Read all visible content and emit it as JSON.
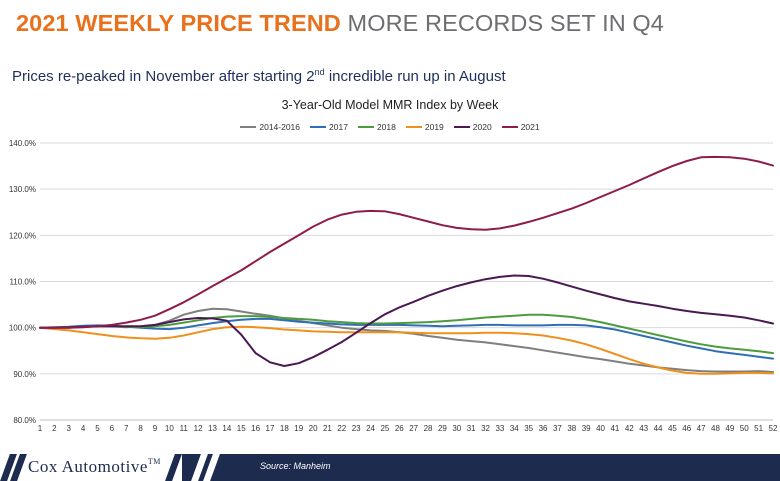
{
  "header": {
    "title_highlight": "2021 WEEKLY PRICE TREND",
    "title_rest": "MORE RECORDS SET IN Q4",
    "subtitle_before": "Prices re-peaked in November after starting 2",
    "subtitle_sup": "nd",
    "subtitle_after": " incredible run up in August"
  },
  "footer": {
    "logo_text": "Cox Automotive",
    "logo_tm": "TM",
    "source": "Source: Manheim"
  },
  "chart_data": {
    "type": "line",
    "title": "3-Year-Old Model MMR Index by Week",
    "xlabel": "",
    "ylabel": "",
    "x": [
      1,
      2,
      3,
      4,
      5,
      6,
      7,
      8,
      9,
      10,
      11,
      12,
      13,
      14,
      15,
      16,
      17,
      18,
      19,
      20,
      21,
      22,
      23,
      24,
      25,
      26,
      27,
      28,
      29,
      30,
      31,
      32,
      33,
      34,
      35,
      36,
      37,
      38,
      39,
      40,
      41,
      42,
      43,
      44,
      45,
      46,
      47,
      48,
      49,
      50,
      51,
      52
    ],
    "ylim": [
      80,
      140
    ],
    "yticks": [
      80,
      90,
      100,
      110,
      120,
      130,
      140
    ],
    "ytick_labels": [
      "80.0%",
      "90.0%",
      "100.0%",
      "110.0%",
      "120.0%",
      "130.0%",
      "140.0%"
    ],
    "legend_position": "top-center",
    "series": [
      {
        "name": "2014-2016",
        "color": "#7f7f7f",
        "values": [
          100.0,
          99.9,
          100.0,
          100.2,
          100.4,
          100.3,
          100.1,
          100.2,
          100.6,
          101.5,
          102.8,
          103.6,
          104.1,
          104.0,
          103.5,
          103.0,
          102.6,
          102.0,
          101.5,
          101.0,
          100.5,
          100.0,
          99.7,
          99.4,
          99.3,
          99.0,
          98.7,
          98.2,
          97.8,
          97.4,
          97.1,
          96.8,
          96.4,
          96.0,
          95.6,
          95.1,
          94.6,
          94.1,
          93.6,
          93.2,
          92.7,
          92.2,
          91.8,
          91.4,
          91.1,
          90.8,
          90.6,
          90.5,
          90.5,
          90.5,
          90.6,
          90.4
        ]
      },
      {
        "name": "2017",
        "color": "#2f6fb5",
        "values": [
          100.0,
          100.1,
          100.2,
          100.4,
          100.5,
          100.4,
          100.2,
          100.0,
          99.8,
          99.7,
          100.0,
          100.5,
          101.0,
          101.4,
          101.7,
          101.9,
          101.9,
          101.6,
          101.3,
          101.1,
          100.9,
          100.7,
          100.6,
          100.6,
          100.6,
          100.6,
          100.5,
          100.4,
          100.3,
          100.4,
          100.5,
          100.6,
          100.6,
          100.5,
          100.5,
          100.5,
          100.6,
          100.6,
          100.5,
          100.1,
          99.6,
          98.9,
          98.2,
          97.5,
          96.8,
          96.1,
          95.5,
          94.9,
          94.5,
          94.1,
          93.7,
          93.3
        ]
      },
      {
        "name": "2018",
        "color": "#4e9a3e",
        "values": [
          100.0,
          100.0,
          100.1,
          100.2,
          100.3,
          100.3,
          100.2,
          100.1,
          100.3,
          100.6,
          101.1,
          101.6,
          102.1,
          102.4,
          102.5,
          102.5,
          102.3,
          102.1,
          101.9,
          101.7,
          101.4,
          101.2,
          101.0,
          100.9,
          100.9,
          101.0,
          101.1,
          101.2,
          101.4,
          101.6,
          101.9,
          102.2,
          102.4,
          102.6,
          102.8,
          102.8,
          102.6,
          102.3,
          101.8,
          101.2,
          100.5,
          99.8,
          99.1,
          98.4,
          97.7,
          97.0,
          96.4,
          95.9,
          95.5,
          95.2,
          94.9,
          94.5
        ]
      },
      {
        "name": "2019",
        "color": "#f0901c",
        "values": [
          100.0,
          99.7,
          99.4,
          99.0,
          98.6,
          98.2,
          97.9,
          97.7,
          97.6,
          97.8,
          98.3,
          99.0,
          99.7,
          100.1,
          100.2,
          100.1,
          99.9,
          99.6,
          99.4,
          99.2,
          99.1,
          99.0,
          99.0,
          99.0,
          99.0,
          99.0,
          98.9,
          98.8,
          98.8,
          98.8,
          98.8,
          98.9,
          98.9,
          98.8,
          98.6,
          98.3,
          97.8,
          97.2,
          96.4,
          95.4,
          94.3,
          93.2,
          92.2,
          91.4,
          90.7,
          90.2,
          90.0,
          90.0,
          90.1,
          90.2,
          90.2,
          90.1
        ]
      },
      {
        "name": "2020",
        "color": "#4b1854",
        "values": [
          100.0,
          100.0,
          100.1,
          100.2,
          100.3,
          100.3,
          100.3,
          100.3,
          100.6,
          101.2,
          101.8,
          102.1,
          102.0,
          101.5,
          98.5,
          94.5,
          92.5,
          91.7,
          92.3,
          93.6,
          95.2,
          96.9,
          98.9,
          101.0,
          102.9,
          104.4,
          105.6,
          106.9,
          108.0,
          109.0,
          109.8,
          110.5,
          111.0,
          111.3,
          111.2,
          110.6,
          109.8,
          108.9,
          108.0,
          107.2,
          106.4,
          105.7,
          105.2,
          104.7,
          104.1,
          103.6,
          103.2,
          102.9,
          102.6,
          102.2,
          101.6,
          100.9
        ]
      },
      {
        "name": "2021",
        "color": "#8e1b4b",
        "values": [
          100.0,
          100.0,
          100.0,
          100.1,
          100.3,
          100.6,
          101.1,
          101.7,
          102.6,
          104.0,
          105.5,
          107.2,
          109.0,
          110.7,
          112.4,
          114.4,
          116.4,
          118.2,
          120.0,
          121.9,
          123.4,
          124.5,
          125.1,
          125.3,
          125.2,
          124.6,
          123.8,
          123.0,
          122.2,
          121.6,
          121.3,
          121.2,
          121.5,
          122.1,
          122.9,
          123.8,
          124.8,
          125.8,
          127.0,
          128.3,
          129.6,
          130.9,
          132.3,
          133.7,
          135.0,
          136.1,
          136.9,
          137.0,
          136.9,
          136.6,
          136.0,
          135.1
        ]
      }
    ]
  }
}
